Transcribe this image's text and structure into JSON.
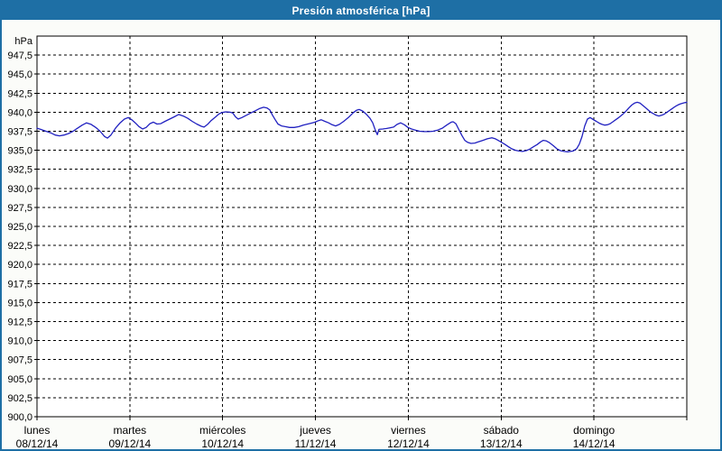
{
  "window": {
    "title": "Presión atmosférica [hPa]"
  },
  "colors": {
    "titlebar": "#1e6fa5",
    "window_border": "#1e6fa5",
    "background": "#fbfcf9",
    "plot_background": "#ffffff",
    "grid": "#000000",
    "axis": "#000000",
    "line": "#2020c0",
    "title_text": "#ffffff",
    "label_text": "#000000"
  },
  "chart_data": {
    "type": "line",
    "title": "Presión atmosférica [hPa]",
    "ylabel": "hPa",
    "unit": "hPa",
    "ylim": [
      900,
      950
    ],
    "ytick_step": 2.5,
    "decimal_separator": ",",
    "grid": "dashed",
    "legend": "none",
    "ytick_labels": [
      "947,5",
      "945,0",
      "942,5",
      "940,0",
      "937,5",
      "935,0",
      "932,5",
      "930,0",
      "927,5",
      "925,0",
      "922,5",
      "920,0",
      "917,5",
      "915,0",
      "912,5",
      "910,0",
      "907,5",
      "905,0",
      "902,5",
      "900,0"
    ],
    "x_axis": {
      "type": "time",
      "span_days": 7,
      "hours_total": 168,
      "days": [
        {
          "name": "lunes",
          "date": "08/12/14"
        },
        {
          "name": "martes",
          "date": "09/12/14"
        },
        {
          "name": "miércoles",
          "date": "10/12/14"
        },
        {
          "name": "jueves",
          "date": "11/12/14"
        },
        {
          "name": "viernes",
          "date": "12/12/14"
        },
        {
          "name": "sábado",
          "date": "13/12/14"
        },
        {
          "name": "domingo",
          "date": "14/12/14"
        }
      ]
    },
    "series": [
      {
        "name": "Presión atmosférica",
        "unit": "hPa",
        "points": [
          [
            0,
            937.9
          ],
          [
            1.2,
            937.7
          ],
          [
            2.3,
            937.5
          ],
          [
            3.5,
            937.3
          ],
          [
            4.7,
            937.0
          ],
          [
            5.8,
            936.9
          ],
          [
            7,
            937.0
          ],
          [
            8.2,
            937.2
          ],
          [
            9.3,
            937.5
          ],
          [
            10.5,
            937.9
          ],
          [
            11.7,
            938.3
          ],
          [
            12.8,
            938.6
          ],
          [
            14,
            938.4
          ],
          [
            15.2,
            938.0
          ],
          [
            16.3,
            937.5
          ],
          [
            17.5,
            936.8
          ],
          [
            18.2,
            936.6
          ],
          [
            19.1,
            937.0
          ],
          [
            20.3,
            937.9
          ],
          [
            21.5,
            938.6
          ],
          [
            22.6,
            939.1
          ],
          [
            23.6,
            939.3
          ],
          [
            24.5,
            939.0
          ],
          [
            25.4,
            938.6
          ],
          [
            26.4,
            938.1
          ],
          [
            27.3,
            937.8
          ],
          [
            28.2,
            938.0
          ],
          [
            29.2,
            938.5
          ],
          [
            30.1,
            938.7
          ],
          [
            31,
            938.45
          ],
          [
            32,
            938.5
          ],
          [
            33.1,
            938.8
          ],
          [
            34.3,
            939.1
          ],
          [
            35.5,
            939.4
          ],
          [
            36.6,
            939.7
          ],
          [
            37.8,
            939.5
          ],
          [
            39,
            939.2
          ],
          [
            40.1,
            938.8
          ],
          [
            41.3,
            938.45
          ],
          [
            42.5,
            938.15
          ],
          [
            43.2,
            938.05
          ],
          [
            44.1,
            938.4
          ],
          [
            45,
            938.9
          ],
          [
            46.2,
            939.4
          ],
          [
            47.1,
            939.8
          ],
          [
            47.8,
            939.95
          ],
          [
            48.8,
            940.05
          ],
          [
            49.9,
            940.0
          ],
          [
            50.6,
            939.9
          ],
          [
            51.3,
            939.4
          ],
          [
            52,
            939.1
          ],
          [
            53,
            939.3
          ],
          [
            54.1,
            939.6
          ],
          [
            55.3,
            939.9
          ],
          [
            56.5,
            940.2
          ],
          [
            57.6,
            940.5
          ],
          [
            58.6,
            940.65
          ],
          [
            59.5,
            940.55
          ],
          [
            60.2,
            940.3
          ],
          [
            60.9,
            939.6
          ],
          [
            61.6,
            939.0
          ],
          [
            62.3,
            938.45
          ],
          [
            63.2,
            938.2
          ],
          [
            64.2,
            938.1
          ],
          [
            65.3,
            938.0
          ],
          [
            66.5,
            938.0
          ],
          [
            67.7,
            938.1
          ],
          [
            68.8,
            938.3
          ],
          [
            70,
            938.45
          ],
          [
            71.2,
            938.6
          ],
          [
            71.9,
            938.7
          ],
          [
            72.8,
            938.9
          ],
          [
            73.5,
            939.0
          ],
          [
            74.4,
            938.8
          ],
          [
            75.4,
            938.6
          ],
          [
            76.3,
            938.35
          ],
          [
            77.2,
            938.2
          ],
          [
            78.2,
            938.4
          ],
          [
            79.3,
            938.8
          ],
          [
            80.5,
            939.3
          ],
          [
            81.7,
            939.9
          ],
          [
            82.6,
            940.25
          ],
          [
            83.3,
            940.35
          ],
          [
            84.2,
            940.15
          ],
          [
            85.2,
            939.7
          ],
          [
            86.1,
            939.2
          ],
          [
            86.8,
            938.6
          ],
          [
            87.5,
            937.6
          ],
          [
            88,
            937.05
          ],
          [
            88.4,
            937.75
          ],
          [
            89.4,
            937.8
          ],
          [
            90.3,
            937.85
          ],
          [
            91.2,
            937.95
          ],
          [
            92.2,
            938.05
          ],
          [
            93.1,
            938.4
          ],
          [
            94,
            938.6
          ],
          [
            95,
            938.35
          ],
          [
            95.9,
            938.0
          ],
          [
            96.8,
            937.8
          ],
          [
            97.8,
            937.65
          ],
          [
            98.9,
            937.5
          ],
          [
            100.1,
            937.45
          ],
          [
            101.3,
            937.45
          ],
          [
            102.4,
            937.5
          ],
          [
            103.6,
            937.65
          ],
          [
            104.8,
            937.9
          ],
          [
            105.9,
            938.3
          ],
          [
            107.1,
            938.7
          ],
          [
            107.6,
            938.75
          ],
          [
            108.3,
            938.5
          ],
          [
            109,
            937.8
          ],
          [
            109.9,
            936.9
          ],
          [
            110.6,
            936.3
          ],
          [
            111.3,
            936.05
          ],
          [
            112.2,
            935.9
          ],
          [
            113.2,
            935.95
          ],
          [
            114.1,
            936.1
          ],
          [
            115.3,
            936.3
          ],
          [
            116.4,
            936.5
          ],
          [
            117.6,
            936.65
          ],
          [
            118.5,
            936.5
          ],
          [
            119.2,
            936.3
          ],
          [
            119.9,
            936.1
          ],
          [
            120.9,
            935.8
          ],
          [
            121.8,
            935.5
          ],
          [
            122.7,
            935.2
          ],
          [
            123.7,
            935.0
          ],
          [
            124.6,
            934.9
          ],
          [
            125.5,
            934.85
          ],
          [
            126.5,
            934.95
          ],
          [
            127.4,
            935.15
          ],
          [
            128.3,
            935.45
          ],
          [
            129.3,
            935.75
          ],
          [
            130.2,
            936.1
          ],
          [
            130.9,
            936.3
          ],
          [
            131.6,
            936.25
          ],
          [
            132.5,
            936.0
          ],
          [
            133.5,
            935.6
          ],
          [
            134.4,
            935.2
          ],
          [
            135.3,
            934.95
          ],
          [
            136.3,
            934.85
          ],
          [
            137.2,
            934.8
          ],
          [
            138.6,
            934.9
          ],
          [
            139.5,
            935.2
          ],
          [
            140.2,
            935.8
          ],
          [
            140.9,
            936.8
          ],
          [
            141.6,
            938.2
          ],
          [
            142.3,
            939.1
          ],
          [
            143,
            939.3
          ],
          [
            143.9,
            939.0
          ],
          [
            144.6,
            938.8
          ],
          [
            145.4,
            938.55
          ],
          [
            146.1,
            938.4
          ],
          [
            146.8,
            938.3
          ],
          [
            147.5,
            938.35
          ],
          [
            148.2,
            938.5
          ],
          [
            148.9,
            938.75
          ],
          [
            149.6,
            939.0
          ],
          [
            150.3,
            939.25
          ],
          [
            151,
            939.55
          ],
          [
            151.7,
            939.85
          ],
          [
            152.4,
            940.2
          ],
          [
            153.1,
            940.6
          ],
          [
            153.8,
            940.95
          ],
          [
            154.5,
            941.2
          ],
          [
            155.2,
            941.3
          ],
          [
            155.9,
            941.2
          ],
          [
            156.6,
            940.9
          ],
          [
            157.3,
            940.6
          ],
          [
            158,
            940.3
          ],
          [
            158.7,
            940.0
          ],
          [
            159.4,
            939.8
          ],
          [
            160.1,
            939.6
          ],
          [
            160.8,
            939.5
          ],
          [
            161.5,
            939.6
          ],
          [
            162.2,
            939.75
          ],
          [
            162.9,
            940.0
          ],
          [
            163.6,
            940.25
          ],
          [
            164.3,
            940.5
          ],
          [
            165,
            940.75
          ],
          [
            165.7,
            940.95
          ],
          [
            166.4,
            941.1
          ],
          [
            167.1,
            941.2
          ],
          [
            167.5,
            941.25
          ],
          [
            168,
            941.3
          ]
        ]
      }
    ]
  }
}
